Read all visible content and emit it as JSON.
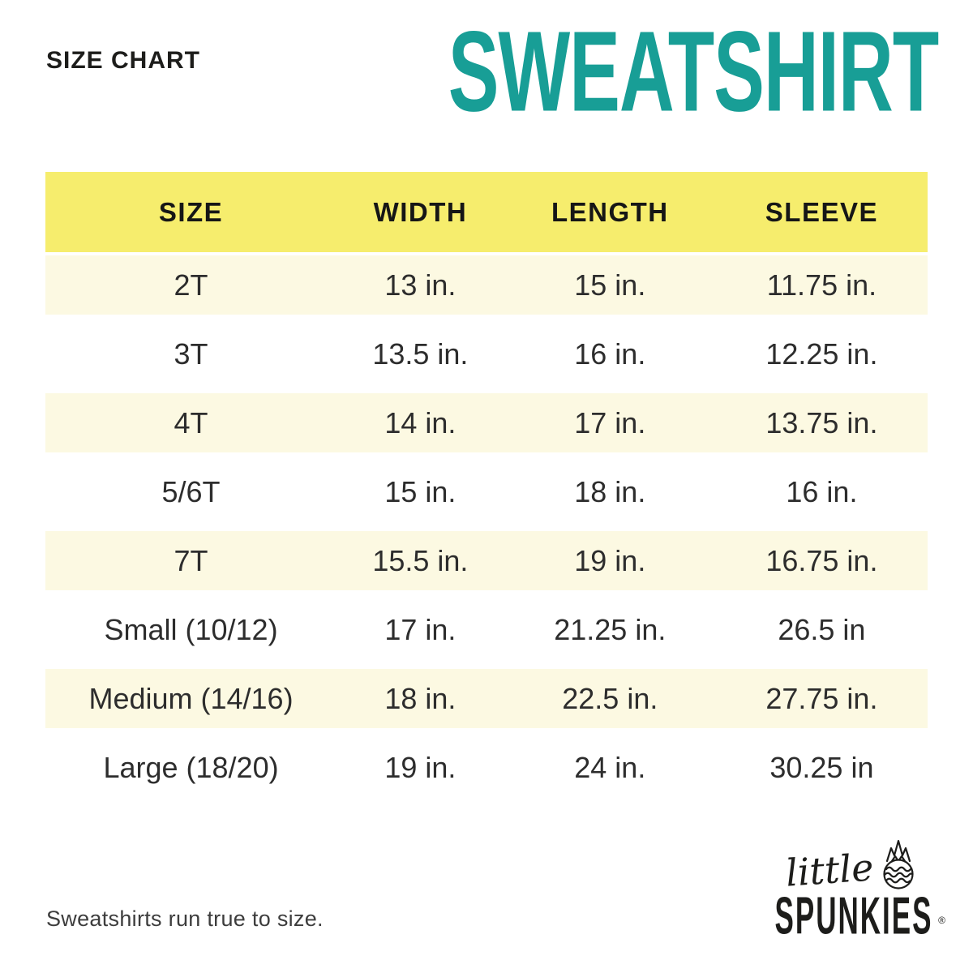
{
  "header": {
    "size_chart_label": "SIZE CHART",
    "product_title": "SWEATSHIRT"
  },
  "footer": {
    "note": "Sweatshirts run true to size.",
    "brand": {
      "script": "little",
      "name": "SPUNKIES",
      "registered_mark": "®",
      "icon": "pineapple-icon"
    }
  },
  "colors": {
    "title_teal": "#189e96",
    "header_row_yellow": "#f6ed6d",
    "alt_row_cream": "#fcf9e2",
    "text_dark": "#1d1d1b"
  },
  "chart_data": {
    "type": "table",
    "title": "SWEATSHIRT",
    "subtitle": "SIZE CHART",
    "columns": [
      "SIZE",
      "WIDTH",
      "LENGTH",
      "SLEEVE"
    ],
    "rows": [
      [
        "2T",
        "13 in.",
        "15 in.",
        "11.75 in."
      ],
      [
        "3T",
        "13.5 in.",
        "16 in.",
        "12.25 in."
      ],
      [
        "4T",
        "14 in.",
        "17 in.",
        "13.75 in."
      ],
      [
        "5/6T",
        "15 in.",
        "18 in.",
        "16 in."
      ],
      [
        "7T",
        "15.5 in.",
        "19 in.",
        "16.75 in."
      ],
      [
        "Small (10/12)",
        "17 in.",
        "21.25 in.",
        "26.5 in"
      ],
      [
        "Medium (14/16)",
        "18 in.",
        "22.5 in.",
        "27.75 in."
      ],
      [
        "Large (18/20)",
        "19 in.",
        "24 in.",
        "30.25 in"
      ]
    ],
    "layout_hints": {
      "header_background": "#f6ed6d",
      "row_alternation": [
        "cream",
        "white"
      ],
      "note": "Sweatshirts run true to size."
    }
  }
}
